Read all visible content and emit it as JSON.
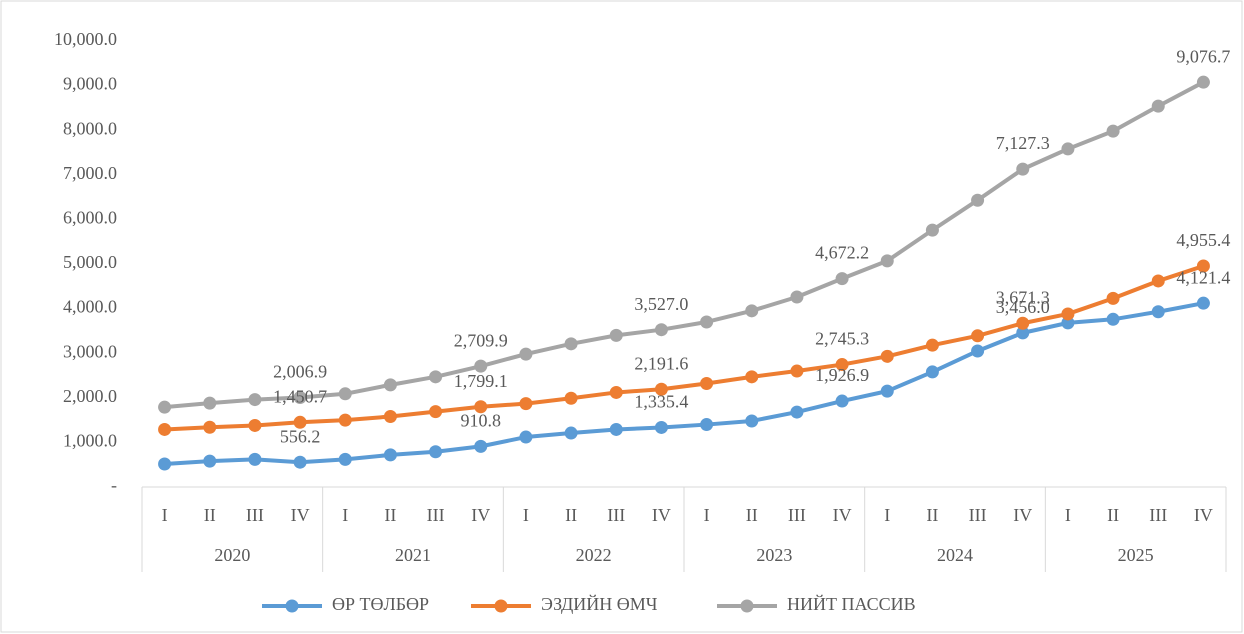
{
  "chart_data": {
    "type": "line",
    "categories": [
      "I",
      "II",
      "III",
      "IV",
      "I",
      "II",
      "III",
      "IV",
      "I",
      "II",
      "III",
      "IV",
      "I",
      "II",
      "III",
      "IV",
      "I",
      "II",
      "III",
      "IV",
      "I",
      "II",
      "III",
      "IV"
    ],
    "groups": [
      {
        "label": "2020",
        "span": 4
      },
      {
        "label": "2021",
        "span": 4
      },
      {
        "label": "2022",
        "span": 4
      },
      {
        "label": "2023",
        "span": 4
      },
      {
        "label": "2024",
        "span": 4
      },
      {
        "label": "2025",
        "span": 4
      }
    ],
    "ylim": [
      0,
      10000
    ],
    "yticks": [
      {
        "value": 0,
        "label": "-"
      },
      {
        "value": 1000,
        "label": "1,000.0"
      },
      {
        "value": 2000,
        "label": "2,000.0"
      },
      {
        "value": 3000,
        "label": "3,000.0"
      },
      {
        "value": 4000,
        "label": "4,000.0"
      },
      {
        "value": 5000,
        "label": "5,000.0"
      },
      {
        "value": 6000,
        "label": "6,000.0"
      },
      {
        "value": 7000,
        "label": "7,000.0"
      },
      {
        "value": 8000,
        "label": "8,000.0"
      },
      {
        "value": 9000,
        "label": "9,000.0"
      },
      {
        "value": 10000,
        "label": "10,000.0"
      }
    ],
    "legend": "bottom",
    "series": [
      {
        "name": "ӨР ТӨЛБӨР",
        "color": "#5b9bd5",
        "values": [
          515,
          580,
          620,
          556.2,
          620,
          720,
          790,
          910.8,
          1120,
          1210,
          1290,
          1335.4,
          1400,
          1480,
          1680,
          1926.9,
          2150,
          2580,
          3050,
          3456.0,
          3680,
          3760,
          3930,
          4121.4
        ],
        "value_labels": [
          null,
          null,
          null,
          "556.2",
          null,
          null,
          null,
          "910.8",
          null,
          null,
          null,
          "1,335.4",
          null,
          null,
          null,
          "1,926.9",
          null,
          null,
          null,
          "3,456.0",
          null,
          null,
          null,
          "4,121.4"
        ]
      },
      {
        "name": "ЭЗДИЙН ӨМЧ",
        "color": "#ed7d31",
        "values": [
          1290,
          1340,
          1380,
          1450.7,
          1500,
          1580,
          1690,
          1799.1,
          1870,
          1990,
          2120,
          2191.6,
          2320,
          2470,
          2600,
          2745.3,
          2930,
          3180,
          3390,
          3671.3,
          3880,
          4230,
          4620,
          4955.4
        ],
        "value_labels": [
          null,
          null,
          null,
          "1,450.7",
          null,
          null,
          null,
          "1,799.1",
          null,
          null,
          null,
          "2,191.6",
          null,
          null,
          null,
          "2,745.3",
          null,
          null,
          null,
          "3,671.3",
          null,
          null,
          null,
          "4,955.4"
        ]
      },
      {
        "name": "НИЙТ ПАССИВ",
        "color": "#a5a5a5",
        "values": [
          1790,
          1880,
          1960,
          2006.9,
          2090,
          2290,
          2470,
          2709.9,
          2980,
          3210,
          3400,
          3527.0,
          3700,
          3950,
          4260,
          4672.2,
          5070,
          5760,
          6430,
          7127.3,
          7580,
          7980,
          8540,
          9076.7
        ],
        "value_labels": [
          null,
          null,
          null,
          "2,006.9",
          null,
          null,
          null,
          "2,709.9",
          null,
          null,
          null,
          "3,527.0",
          null,
          null,
          null,
          "4,672.2",
          null,
          null,
          null,
          "7,127.3",
          null,
          null,
          null,
          "9,076.7"
        ]
      }
    ]
  }
}
